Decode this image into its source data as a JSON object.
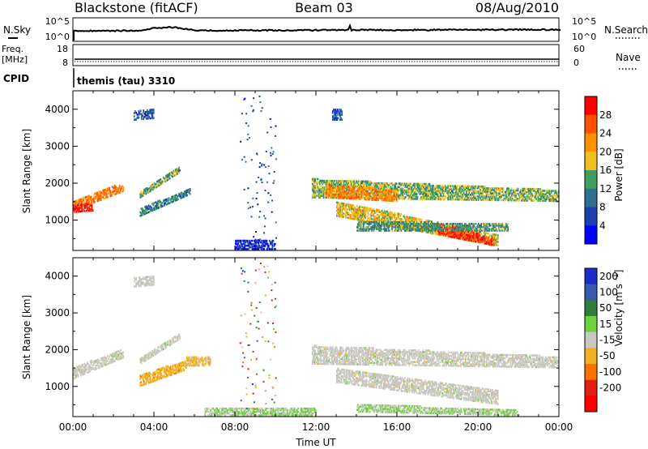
{
  "header": {
    "station": "Blackstone (fitACF)",
    "beam": "Beam 03",
    "date": "08/Aug/2010"
  },
  "top_panels": {
    "nsky_label": "N.Sky",
    "nsky_ticks": [
      "10^5",
      "10^0"
    ],
    "nsearch_label": "N.Search",
    "nsearch_ticks": [
      "10^5",
      "10^0"
    ],
    "freq_label": "Freq.",
    "freq_unit": "[MHz]",
    "freq_ticks": [
      "18",
      "8"
    ],
    "nave_label": "Nave",
    "nave_ticks": [
      "60",
      "0"
    ],
    "cpid_label": "CPID",
    "cpid_value": "themis (tau) 3310"
  },
  "colors": {
    "power_scale": [
      "#0000ff",
      "#1f3fb0",
      "#2f6f8f",
      "#3f9f5f",
      "#f0c020",
      "#ff9000",
      "#ff5000",
      "#ff0000"
    ],
    "velocity_scale": [
      "#1c2cc8",
      "#3a58b0",
      "#2f7f3a",
      "#6fd040",
      "#c8c8c0",
      "#f0b020",
      "#ff7000",
      "#e02010",
      "#ff0000"
    ]
  },
  "chart_data": [
    {
      "type": "heatmap",
      "panel": "power",
      "ylabel": "Slant Range [km]",
      "xlim_hours": [
        0,
        24
      ],
      "ylim": [
        180,
        4500
      ],
      "yticks": [
        "1000",
        "2000",
        "3000",
        "4000"
      ],
      "colorbar": {
        "label": "Power [dB]",
        "ticks": [
          "4",
          "8",
          "12",
          "16",
          "20",
          "24",
          "28"
        ],
        "range": [
          0,
          30
        ]
      },
      "regions": [
        {
          "t": [
            0.0,
            2.5
          ],
          "r0": [
            1250,
            1780
          ],
          "r1": [
            1500,
            2000
          ],
          "value": 22
        },
        {
          "t": [
            0.0,
            1.0
          ],
          "r0": [
            1200,
            1250
          ],
          "r1": [
            1400,
            1450
          ],
          "value": 27
        },
        {
          "t": [
            3.3,
            5.8
          ],
          "r0": [
            1100,
            1700
          ],
          "r1": [
            1300,
            1850
          ],
          "value": 10
        },
        {
          "t": [
            3.3,
            5.3
          ],
          "r0": [
            1600,
            2300
          ],
          "r1": [
            1750,
            2450
          ],
          "value": 13
        },
        {
          "t": [
            3.0,
            4.0
          ],
          "r0": [
            3700,
            3750
          ],
          "r1": [
            3950,
            4000
          ],
          "value": 7
        },
        {
          "t": [
            8.0,
            10.0
          ],
          "r0": [
            200,
            200
          ],
          "r1": [
            450,
            450
          ],
          "value": 4
        },
        {
          "t": [
            11.8,
            24.0
          ],
          "r0": [
            1600,
            1500
          ],
          "r1": [
            2100,
            1800
          ],
          "value": 14
        },
        {
          "t": [
            12.5,
            16.0
          ],
          "r0": [
            1600,
            1500
          ],
          "r1": [
            1950,
            1800
          ],
          "value": 21
        },
        {
          "t": [
            13.0,
            21.0
          ],
          "r0": [
            1100,
            300
          ],
          "r1": [
            1500,
            600
          ],
          "value": 17
        },
        {
          "t": [
            18.0,
            20.8
          ],
          "r0": [
            600,
            300
          ],
          "r1": [
            900,
            500
          ],
          "value": 26
        },
        {
          "t": [
            14.0,
            21.5
          ],
          "r0": [
            700,
            700
          ],
          "r1": [
            950,
            900
          ],
          "value": 12
        },
        {
          "t": [
            12.8,
            13.3
          ],
          "r0": [
            3700,
            3700
          ],
          "r1": [
            4000,
            4000
          ],
          "value": 7
        }
      ]
    },
    {
      "type": "heatmap",
      "panel": "velocity",
      "xlabel": "Time UT",
      "ylabel": "Slant Range [km]",
      "xlim_hours": [
        0,
        24
      ],
      "xticks": [
        "00:00",
        "04:00",
        "08:00",
        "12:00",
        "16:00",
        "20:00",
        "00:00"
      ],
      "ylim": [
        180,
        4500
      ],
      "yticks": [
        "1000",
        "2000",
        "3000",
        "4000"
      ],
      "colorbar": {
        "label": "Velocity [m s^-1]",
        "ticks": [
          "200",
          "100",
          "50",
          "15",
          "-15",
          "-50",
          "-100",
          "-200"
        ],
        "range": [
          -250,
          250
        ]
      },
      "regions": [
        {
          "t": [
            0.0,
            2.5
          ],
          "r0": [
            1200,
            1780
          ],
          "r1": [
            1500,
            2000
          ],
          "value": 0
        },
        {
          "t": [
            3.3,
            5.6
          ],
          "r0": [
            1000,
            1450
          ],
          "r1": [
            1300,
            1700
          ],
          "value": -60
        },
        {
          "t": [
            5.6,
            6.8
          ],
          "r0": [
            1550,
            1550
          ],
          "r1": [
            1800,
            1800
          ],
          "value": -40
        },
        {
          "t": [
            3.3,
            5.3
          ],
          "r0": [
            1600,
            2300
          ],
          "r1": [
            1750,
            2450
          ],
          "value": 0
        },
        {
          "t": [
            6.5,
            12.0
          ],
          "r0": [
            200,
            200
          ],
          "r1": [
            400,
            400
          ],
          "value": 30
        },
        {
          "t": [
            11.8,
            24.0
          ],
          "r0": [
            1600,
            1500
          ],
          "r1": [
            2100,
            1800
          ],
          "value": 0
        },
        {
          "t": [
            13.0,
            21.0
          ],
          "r0": [
            1100,
            500
          ],
          "r1": [
            1500,
            900
          ],
          "value": 0
        },
        {
          "t": [
            14.0,
            22.0
          ],
          "r0": [
            300,
            200
          ],
          "r1": [
            500,
            350
          ],
          "value": 30
        },
        {
          "t": [
            3.0,
            4.0
          ],
          "r0": [
            3700,
            3750
          ],
          "r1": [
            3950,
            4000
          ],
          "value": 0
        }
      ]
    }
  ]
}
